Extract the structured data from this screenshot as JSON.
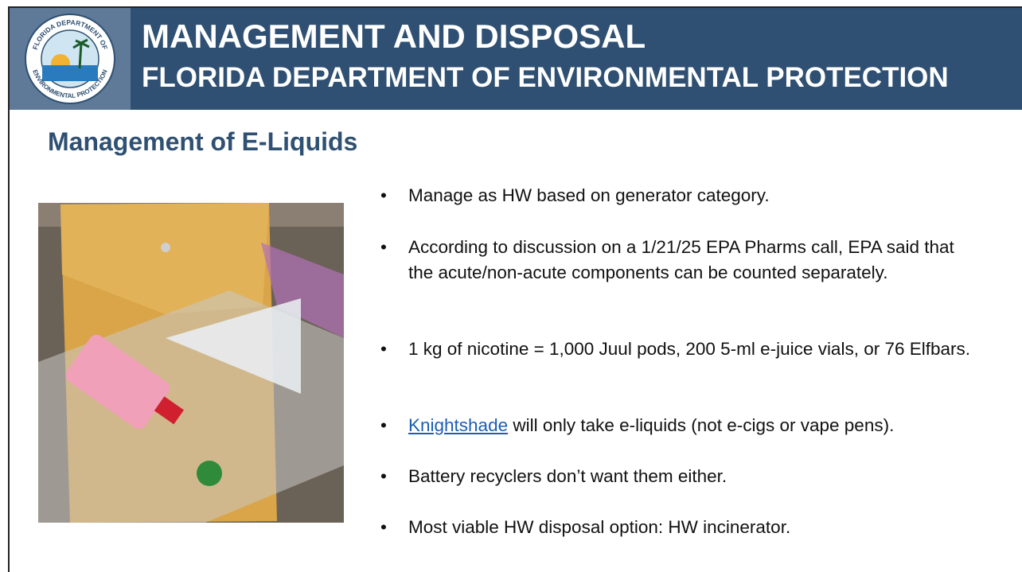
{
  "header": {
    "title": "MANAGEMENT AND DISPOSAL",
    "subtitle": "FLORIDA DEPARTMENT OF ENVIRONMENTAL PROTECTION"
  },
  "logo": {
    "top_text": "FLORIDA DEPARTMENT OF",
    "bottom_text": "ENVIRONMENTAL PROTECTION"
  },
  "slide": {
    "heading": "Management of E-Liquids",
    "bullets": [
      "Manage as HW based on generator category.",
      "According to discussion on a 1/21/25 EPA Pharms call, EPA said that the acute/non-acute components can be counted separately.",
      "1 kg of nicotine = 1,000 Juul pods, 200 5-ml e-juice vials, or 76 Elfbars.",
      {
        "link": "Knightshade",
        "text": " will only take e-liquids (not e-cigs or vape pens)."
      },
      "Battery recyclers don’t want them either.",
      "Most viable HW disposal option: HW incinerator."
    ]
  }
}
